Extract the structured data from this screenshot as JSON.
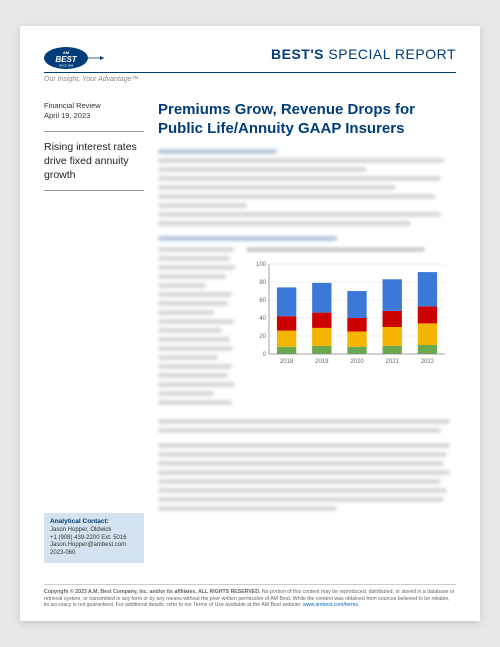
{
  "header": {
    "brand_am": "AM",
    "brand_best": "BEST",
    "brand_since": "SINCE 1899",
    "title_bold": "BEST'S",
    "title_rest": " SPECIAL REPORT",
    "tagline": "Our Insight, Your Advantage™"
  },
  "sidebar": {
    "review_label": "Financial Review",
    "date": "April 19, 2023",
    "callout": "Rising interest rates drive fixed annuity growth"
  },
  "content": {
    "title": "Premiums Grow, Revenue Drops for Public Life/Annuity GAAP Insurers"
  },
  "chart": {
    "type": "stacked-bar",
    "categories": [
      "2018",
      "2019",
      "2020",
      "2021",
      "2022"
    ],
    "series": [
      {
        "color": "#6aa84f",
        "values": [
          8,
          9,
          8,
          9,
          10
        ]
      },
      {
        "color": "#f4b400",
        "values": [
          18,
          20,
          17,
          21,
          24
        ]
      },
      {
        "color": "#cc0000",
        "values": [
          16,
          17,
          15,
          18,
          19
        ]
      },
      {
        "color": "#3c78d8",
        "values": [
          32,
          33,
          30,
          35,
          38
        ]
      }
    ],
    "ylim": [
      0,
      100
    ],
    "bar_width": 0.55,
    "background_color": "#ffffff",
    "grid_color": "#e0e0e0",
    "axis_color": "#888",
    "label_fontsize": 6
  },
  "contact": {
    "heading": "Analytical Contact:",
    "name": "Jason Hopper, Oldwick",
    "phone": "+1 (908) 439-2200 Ext. 5016",
    "email": "Jason.Hopper@ambest.com",
    "ref": "2023-060"
  },
  "footer": {
    "copyright": "Copyright © 2023 A.M. Best Company, Inc. and/or its affiliates. ALL RIGHTS RESERVED.",
    "text": " No portion of this content may be reproduced, distributed, or stored in a database or retrieval system, or transmitted in any form or by any means without the prior written permission of AM Best. While the content was obtained from sources believed to be reliable, its accuracy is not guaranteed. For additional details, refer to our Terms of Use available at the AM Best website: ",
    "link": "www.ambest.com/terms"
  }
}
